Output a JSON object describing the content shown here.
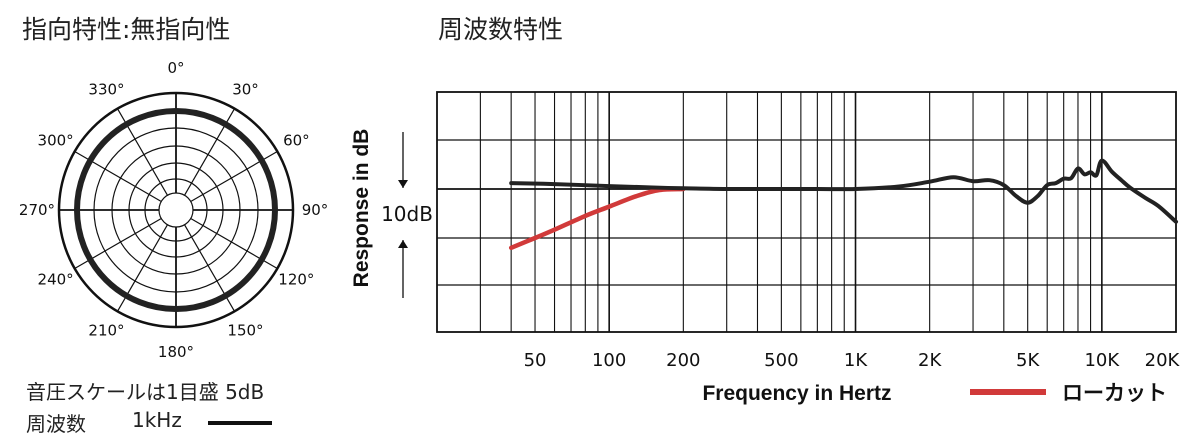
{
  "polar": {
    "title": "指向特性:無指向性",
    "angle_labels": [
      "0°",
      "30°",
      "60°",
      "90°",
      "120°",
      "150°",
      "180°",
      "210°",
      "240°",
      "270°",
      "300°",
      "330°"
    ],
    "scale_note": "音圧スケールは1目盛 5dB",
    "freq_label": "周波数",
    "freq_value": "1kHz"
  },
  "frequency_response": {
    "title": "周波数特性"
  },
  "chart_data": [
    {
      "type": "polar",
      "title": "指向特性:無指向性",
      "angle_ticks": [
        "0°",
        "30°",
        "60°",
        "90°",
        "120°",
        "150°",
        "180°",
        "210°",
        "240°",
        "270°",
        "300°",
        "330°"
      ],
      "series": [
        {
          "name": "1kHz",
          "color": "#222222",
          "pattern": "omnidirectional"
        }
      ]
    },
    {
      "type": "line",
      "title": "周波数特性",
      "xlabel": "Frequency in Hertz",
      "ylabel": "Response in dB",
      "x_scale": "log",
      "xlim": [
        20,
        20000
      ],
      "x_tick_labels": [
        "50",
        "100",
        "200",
        "500",
        "1K",
        "2K",
        "5K",
        "10K",
        "20K"
      ],
      "scale_annotation": "10dB",
      "series": [
        {
          "color": "#222222",
          "x": [
            40,
            60,
            100,
            150,
            200,
            300,
            500,
            700,
            1000,
            1500,
            2000,
            2500,
            3000,
            3500,
            4000,
            4500,
            5000,
            5500,
            6000,
            6500,
            7000,
            7500,
            8000,
            8500,
            9000,
            9500,
            10000,
            11000,
            12000,
            13000,
            15000,
            17000,
            20000
          ],
          "y": [
            1.2,
            1.0,
            0.6,
            0.3,
            0.15,
            0,
            0,
            0,
            0,
            0.5,
            1.5,
            2.4,
            1.6,
            1.8,
            0.8,
            -1.5,
            -2.8,
            -1.4,
            0.8,
            1.2,
            2.1,
            2.2,
            4.2,
            3.0,
            3.4,
            2.8,
            5.8,
            3.5,
            1.8,
            0.3,
            -1.8,
            -3.5,
            -6.7
          ]
        },
        {
          "name": "ローカット",
          "color": "#d13a3a",
          "x": [
            40,
            50,
            60,
            80,
            100,
            130,
            160,
            200
          ],
          "y": [
            -12,
            -10,
            -8.3,
            -5.5,
            -3.6,
            -1.4,
            -0.2,
            0
          ]
        }
      ]
    }
  ]
}
